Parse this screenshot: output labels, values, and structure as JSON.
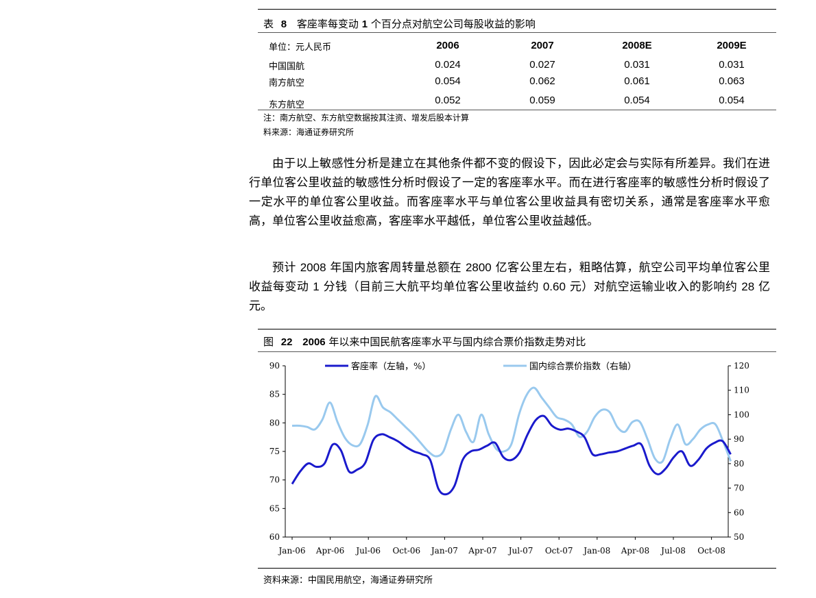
{
  "table8": {
    "label": "表",
    "number": "8",
    "title": "客座率每变动",
    "title_num": "1",
    "title_rest": "个百分点对航空公司每股收益的影响",
    "unit": "单位：元人民币",
    "columns": [
      "2006",
      "2007",
      "2008E",
      "2009E"
    ],
    "rows": [
      {
        "name": "中国国航",
        "values": [
          "0.024",
          "0.027",
          "0.031",
          "0.031"
        ]
      },
      {
        "name": "南方航空",
        "values": [
          "0.054",
          "0.062",
          "0.061",
          "0.063"
        ]
      },
      {
        "name": "东方航空",
        "values": [
          "0.052",
          "0.059",
          "0.054",
          "0.054"
        ]
      }
    ],
    "note": "注：南方航空、东方航空数据按其注资、增发后股本计算",
    "source": "料来源：海通证券研究所"
  },
  "para1": "由于以上敏感性分析是建立在其他条件都不变的假设下，因此必定会与实际有所差异。我们在进行单位客公里收益的敏感性分析时假设了一定的客座率水平。而在进行客座率的敏感性分析时假设了一定水平的单位客公里收益。而客座率水平与单位客公里收益具有密切关系，通常是客座率水平愈高，单位客公里收益愈高，客座率水平越低，单位客公里收益越低。",
  "para2": {
    "a": "预计",
    "b": "2008",
    "c": "年国内旅客周转量总额在",
    "d": "2800",
    "e": "亿客公里左右，粗略估算，航空公司平均单位客公里收益每变动",
    "f": "1",
    "g": "分钱（目前三大航平均单位客公里收益约",
    "h": "0.60",
    "i": "元）对航空运输业收入的影响约",
    "j": "28",
    "k": "亿元。"
  },
  "figure22": {
    "label": "图",
    "number": "22",
    "title_num": "2006",
    "title_rest": "年以来中国民航客座率水平与国内综合票价指数走势对比",
    "source": "资料来源：中国民用航空，海通证券研究所"
  },
  "chart_data": {
    "type": "line",
    "x_labels": [
      "Jan-06",
      "Apr-06",
      "Jul-06",
      "Oct-06",
      "Jan-07",
      "Apr-07",
      "Jul-07",
      "Oct-07",
      "Jan-08",
      "Apr-08",
      "Jul-08",
      "Oct-08"
    ],
    "y_left": {
      "min": 60,
      "max": 90,
      "step": 5,
      "ticks": [
        "60",
        "65",
        "70",
        "75",
        "80",
        "85",
        "90"
      ]
    },
    "y_right": {
      "min": 50,
      "max": 120,
      "step": 10,
      "ticks": [
        "50",
        "60",
        "70",
        "80",
        "90",
        "100",
        "110",
        "120"
      ]
    },
    "legend_placement": "top",
    "grid": false,
    "series": [
      {
        "name": "客座率（左轴，%）",
        "axis": "left",
        "color": "#1a1acc",
        "values": [
          69.3,
          71.5,
          72.9,
          72.3,
          72.9,
          76.2,
          75.2,
          71.5,
          71.8,
          73.0,
          77.0,
          78.0,
          77.5,
          76.8,
          75.8,
          75.0,
          74.5,
          73.5,
          68.5,
          67.5,
          69.0,
          73.5,
          75.0,
          75.3,
          76.0,
          76.5,
          74.0,
          73.5,
          74.8,
          78.0,
          80.5,
          81.2,
          79.5,
          78.8,
          79.0,
          78.5,
          77.5,
          74.5,
          74.5,
          74.8,
          75.0,
          75.5,
          76.0,
          76.2,
          72.5,
          71.0,
          72.0,
          74.0,
          75.0,
          72.5,
          73.5,
          75.5,
          76.5,
          76.8,
          74.5
        ]
      },
      {
        "name": "国内综合票价指数（右轴）",
        "axis": "right",
        "color": "#99c9ee",
        "values": [
          95.5,
          95.5,
          95.0,
          94.0,
          98.0,
          105.0,
          97.0,
          90.5,
          87.5,
          88.0,
          96.0,
          107.5,
          103.0,
          101.0,
          98.0,
          95.0,
          92.0,
          88.5,
          85.0,
          83.0,
          85.0,
          94.0,
          100.0,
          93.0,
          89.0,
          100.0,
          92.0,
          86.0,
          85.0,
          88.0,
          100.0,
          108.0,
          111.0,
          107.0,
          103.0,
          99.0,
          98.0,
          96.0,
          91.0,
          93.0,
          99.0,
          102.0,
          101.0,
          95.0,
          93.0,
          97.0,
          97.0,
          90.0,
          82.0,
          81.0,
          90.0,
          96.0,
          88.0,
          90.0,
          94.0,
          96.0,
          96.0,
          89.0,
          81.0
        ]
      }
    ]
  }
}
